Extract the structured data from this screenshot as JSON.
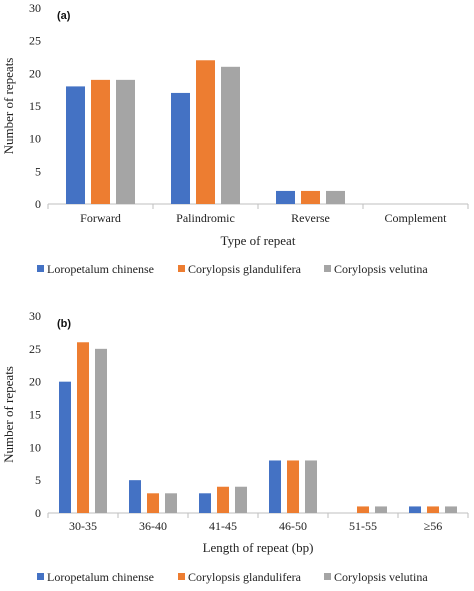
{
  "colors": {
    "series": [
      "#4472C4",
      "#ED7D31",
      "#A5A5A5"
    ]
  },
  "chart_data": [
    {
      "type": "bar",
      "panel_label": "(a)",
      "categories": [
        "Forward",
        "Palindromic",
        "Reverse",
        "Complement"
      ],
      "xlabel": "Type of repeat",
      "ylabel": "Number of repeats",
      "ylim": [
        0,
        30
      ],
      "yticks": [
        "0",
        "5",
        "10",
        "15",
        "20",
        "25",
        "30"
      ],
      "grid": false,
      "legend": "bottom",
      "series": [
        {
          "name": "Loropetalum chinense",
          "values": [
            18,
            17,
            2,
            0
          ]
        },
        {
          "name": "Corylopsis glandulifera",
          "values": [
            19,
            22,
            2,
            0
          ]
        },
        {
          "name": "Corylopsis velutina",
          "values": [
            19,
            21,
            2,
            0
          ]
        }
      ]
    },
    {
      "type": "bar",
      "panel_label": "(b)",
      "categories": [
        "30-35",
        "36-40",
        "41-45",
        "46-50",
        "51-55",
        "≥56"
      ],
      "xlabel": "Length of repeat (bp)",
      "ylabel": "Number of repeats",
      "ylim": [
        0,
        30
      ],
      "yticks": [
        "0",
        "5",
        "10",
        "15",
        "20",
        "25",
        "30"
      ],
      "grid": false,
      "legend": "bottom",
      "series": [
        {
          "name": "Loropetalum chinense",
          "values": [
            20,
            5,
            3,
            8,
            0,
            1
          ]
        },
        {
          "name": "Corylopsis glandulifera",
          "values": [
            26,
            3,
            4,
            8,
            1,
            1
          ]
        },
        {
          "name": "Corylopsis velutina",
          "values": [
            25,
            3,
            4,
            8,
            1,
            1
          ]
        }
      ]
    }
  ]
}
